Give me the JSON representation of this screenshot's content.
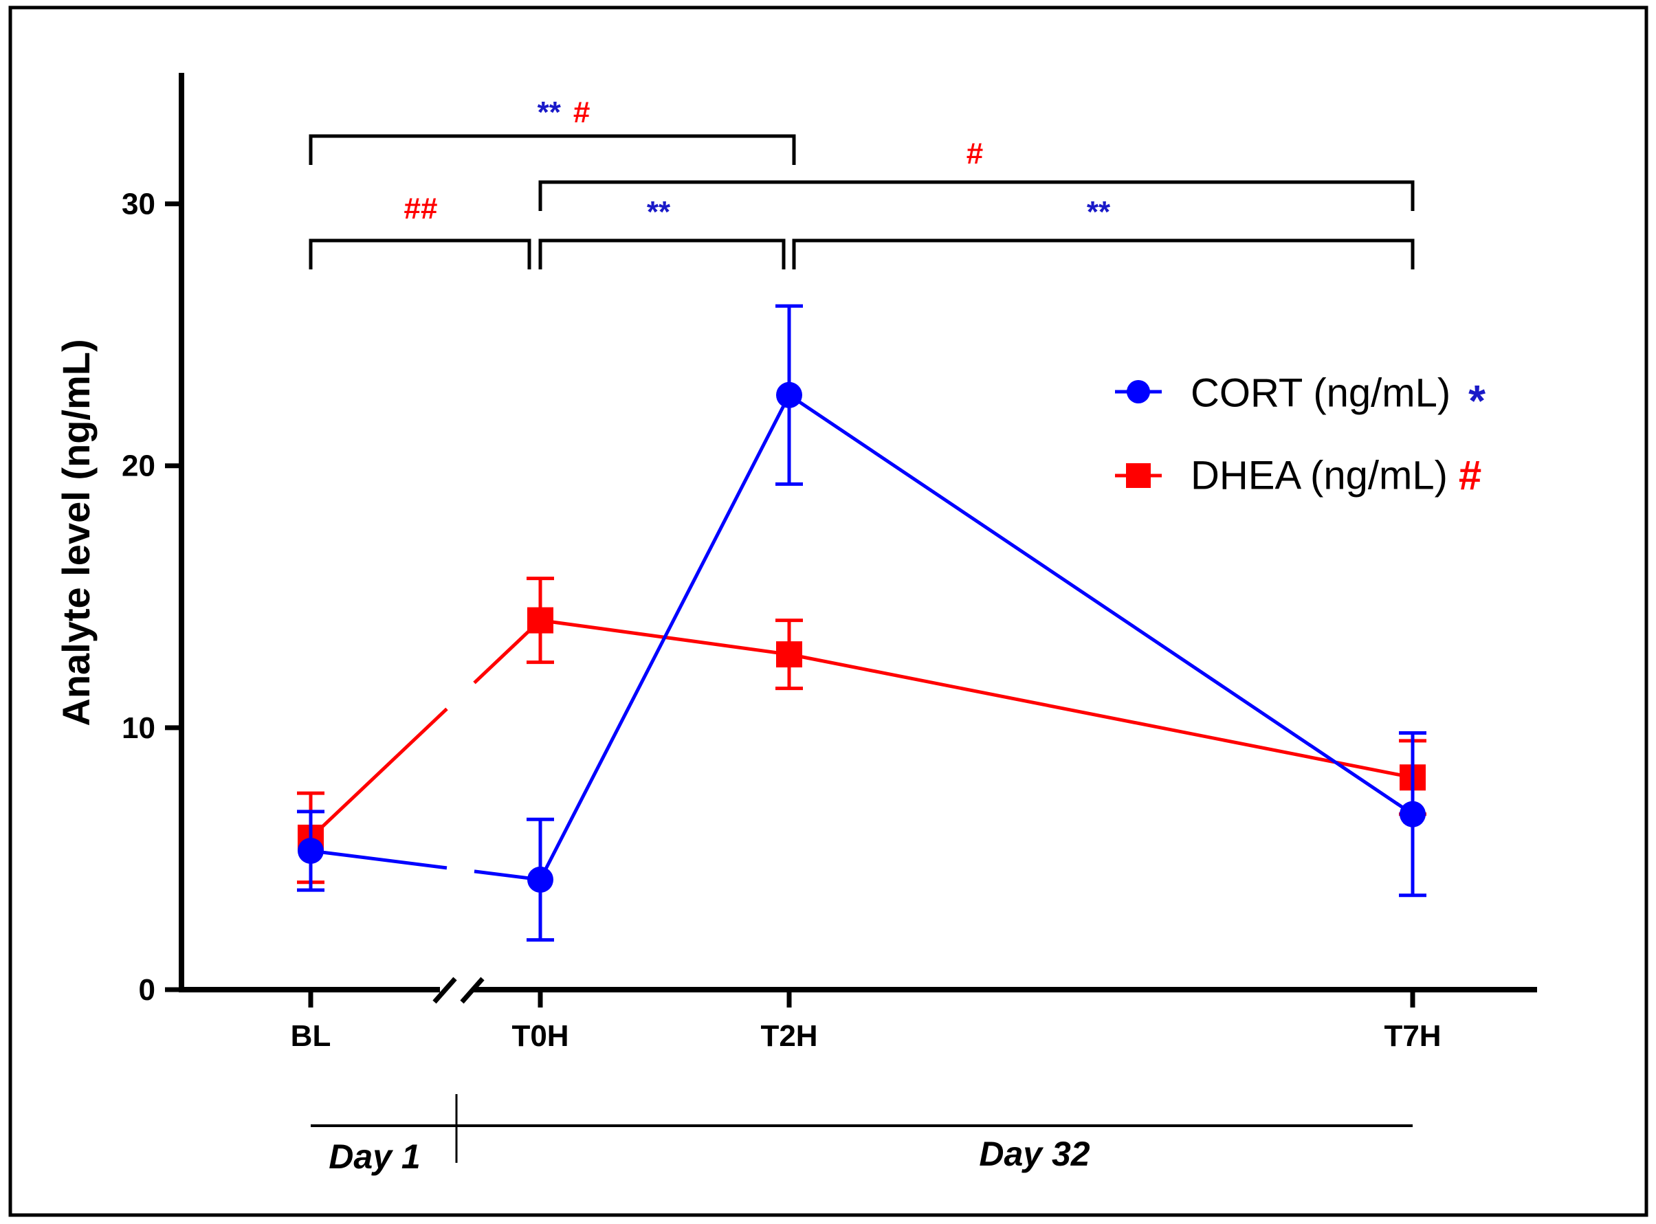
{
  "chart_data": {
    "type": "line",
    "ylabel": "Analyte level (ng/mL)",
    "xlabel": "",
    "ylim": [
      0,
      35
    ],
    "yticks": [
      0,
      10,
      20,
      30
    ],
    "categories": [
      "BL",
      "T0H",
      "T2H",
      "T7H"
    ],
    "axis_break_between": [
      "BL",
      "T0H"
    ],
    "series": [
      {
        "name": "CORT (ng/mL)",
        "marker": "circle",
        "color": "#0000FF",
        "significance_symbol": "*",
        "symbol_color": "#1A1AC8",
        "values": [
          5.3,
          4.2,
          22.7,
          6.7
        ],
        "error": [
          1.5,
          2.3,
          3.4,
          3.1
        ]
      },
      {
        "name": "DHEA (ng/mL)",
        "marker": "square",
        "color": "#FF0000",
        "significance_symbol": "#",
        "symbol_color": "#FF0000",
        "values": [
          5.8,
          14.1,
          12.8,
          8.1
        ],
        "error": [
          1.7,
          1.6,
          1.3,
          1.4
        ]
      }
    ],
    "significance_brackets": [
      {
        "from": "BL",
        "to": "T2H",
        "labels": [
          {
            "text": "**",
            "color": "#1A1AC8"
          },
          {
            "text": "#",
            "color": "#FF0000"
          }
        ]
      },
      {
        "from": "T0H",
        "to": "T7H",
        "labels": [
          {
            "text": "#",
            "color": "#FF0000"
          }
        ]
      },
      {
        "from": "BL",
        "to": "T0H",
        "labels": [
          {
            "text": "##",
            "color": "#FF0000"
          }
        ]
      },
      {
        "from": "T0H",
        "to": "T2H",
        "labels": [
          {
            "text": "**",
            "color": "#1A1AC8"
          }
        ]
      },
      {
        "from": "T2H",
        "to": "T7H",
        "labels": [
          {
            "text": "**",
            "color": "#1A1AC8"
          }
        ]
      }
    ],
    "day_labels": [
      "Day 1",
      "Day 32"
    ]
  }
}
